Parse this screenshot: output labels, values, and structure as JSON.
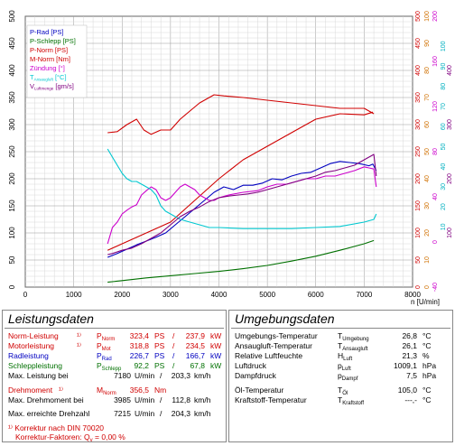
{
  "chart_data": {
    "type": "line",
    "xlabel": "n [U/min]",
    "xlim": [
      0,
      8000
    ],
    "xticks": [
      0,
      1000,
      2000,
      3000,
      4000,
      5000,
      6000,
      7000,
      8000
    ],
    "axes": {
      "left_black": {
        "range": [
          0,
          500
        ],
        "ticks": [
          0,
          50,
          100,
          150,
          200,
          250,
          300,
          350,
          400,
          450,
          500
        ],
        "color": "#000000"
      },
      "right_red": {
        "range": [
          0,
          500
        ],
        "ticks": [
          0,
          50,
          100,
          150,
          200,
          250,
          300,
          350,
          400,
          450,
          500
        ],
        "color": "#d00000"
      },
      "right_orange": {
        "range": [
          0,
          100
        ],
        "ticks": [
          0,
          10,
          20,
          30,
          40,
          50,
          60,
          70,
          80,
          90,
          100
        ],
        "color": "#d07000"
      },
      "right_magenta": {
        "range": [
          -40,
          200
        ],
        "ticks": [
          -40,
          0,
          40,
          80,
          120,
          160,
          200
        ],
        "color": "#cc00cc"
      },
      "right_cyan": {
        "ticks": [
          10,
          20,
          30,
          40,
          50,
          60,
          70,
          80,
          90,
          100
        ],
        "color": "#00b0c0"
      },
      "right_purple": {
        "ticks": [
          100,
          200,
          300,
          400
        ],
        "color": "#800080"
      }
    },
    "legend": {
      "placement": "top-left",
      "entries": [
        {
          "main": "P-Rad [PS]",
          "sub": "",
          "rest": "",
          "color": "#0000c0"
        },
        {
          "main": "P-Schlepp [PS]",
          "sub": "",
          "rest": "",
          "color": "#007000"
        },
        {
          "main": "P-Norm [PS]",
          "sub": "",
          "rest": "",
          "color": "#d00000"
        },
        {
          "main": "M-Norm [Nm]",
          "sub": "",
          "rest": "",
          "color": "#d00000"
        },
        {
          "main": "Zündung [°]",
          "sub": "",
          "rest": "",
          "color": "#cc00cc"
        },
        {
          "main": "T",
          "sub": "Ansaugluft",
          "rest": " [°C]",
          "color": "#00c8d0"
        },
        {
          "main": "V",
          "sub": "Luftmenge",
          "rest": " [gm/s]",
          "color": "#800080"
        }
      ]
    },
    "series": [
      {
        "color": "#0000c0",
        "axis": "left_black",
        "x": [
          1700,
          1900,
          2100,
          2300,
          2500,
          2700,
          2900,
          3100,
          3300,
          3500,
          3700,
          3900,
          4100,
          4300,
          4500,
          4700,
          4900,
          5100,
          5300,
          5500,
          5700,
          5900,
          6100,
          6300,
          6500,
          6700,
          6900,
          7100,
          7180,
          7250
        ],
        "y": [
          55,
          62,
          70,
          78,
          85,
          92,
          100,
          115,
          130,
          145,
          160,
          175,
          185,
          180,
          188,
          188,
          192,
          200,
          198,
          205,
          210,
          212,
          220,
          228,
          232,
          230,
          228,
          224,
          227,
          215
        ]
      },
      {
        "color": "#007000",
        "axis": "left_black",
        "x": [
          1700,
          2000,
          2500,
          3000,
          3500,
          4000,
          4500,
          5000,
          5500,
          6000,
          6500,
          7000,
          7200
        ],
        "y": [
          9,
          12,
          17,
          21,
          25,
          29,
          34,
          40,
          48,
          57,
          68,
          80,
          86
        ]
      },
      {
        "color": "#d00000",
        "axis": "left_black",
        "x": [
          1700,
          2000,
          2500,
          3000,
          3500,
          4000,
          4500,
          5000,
          5500,
          6000,
          6500,
          7000,
          7180
        ],
        "y": [
          68,
          80,
          100,
          120,
          160,
          200,
          235,
          260,
          285,
          310,
          320,
          318,
          323
        ]
      },
      {
        "color": "#d00000",
        "axis": "left_black",
        "x": [
          1700,
          1900,
          2100,
          2300,
          2450,
          2600,
          2800,
          3000,
          3200,
          3400,
          3600,
          3800,
          3900,
          4100,
          4500,
          5000,
          5500,
          6000,
          6500,
          7000,
          7200
        ],
        "y": [
          285,
          287,
          300,
          310,
          290,
          282,
          290,
          290,
          310,
          325,
          340,
          350,
          355,
          353,
          350,
          345,
          340,
          335,
          330,
          330,
          320
        ]
      },
      {
        "color": "#cc00cc",
        "axis": "left_black",
        "x": [
          1700,
          1800,
          1900,
          2000,
          2100,
          2200,
          2300,
          2400,
          2500,
          2600,
          2700,
          2800,
          2900,
          3000,
          3100,
          3200,
          3300,
          3400,
          3500,
          3600,
          3700,
          3800,
          3900,
          4000,
          4200,
          4500,
          4800,
          5000,
          5200,
          5400,
          5600,
          5800,
          6000,
          6200,
          6400,
          6600,
          6800,
          7000,
          7100,
          7200,
          7250
        ],
        "y": [
          80,
          110,
          120,
          135,
          142,
          148,
          152,
          170,
          178,
          185,
          180,
          165,
          160,
          165,
          175,
          185,
          190,
          185,
          180,
          170,
          165,
          160,
          160,
          165,
          170,
          175,
          178,
          185,
          190,
          190,
          195,
          200,
          200,
          205,
          205,
          210,
          215,
          222,
          220,
          218,
          185
        ]
      },
      {
        "color": "#00c8d0",
        "axis": "left_black",
        "x": [
          1700,
          1800,
          1900,
          2000,
          2100,
          2200,
          2300,
          2400,
          2500,
          2600,
          2700,
          2800,
          2900,
          3000,
          3200,
          3400,
          3600,
          3800,
          4000,
          4500,
          5000,
          5500,
          6000,
          6500,
          7000,
          7200,
          7250
        ],
        "y": [
          255,
          240,
          225,
          210,
          200,
          195,
          195,
          190,
          185,
          180,
          170,
          150,
          140,
          135,
          125,
          120,
          115,
          110,
          110,
          108,
          108,
          108,
          110,
          112,
          120,
          125,
          135
        ]
      },
      {
        "color": "#800080",
        "axis": "left_black",
        "x": [
          1700,
          1800,
          2000,
          2200,
          2400,
          2600,
          2800,
          3000,
          3200,
          3400,
          3600,
          3800,
          4000,
          4200,
          4400,
          4600,
          4800,
          5000,
          5200,
          5400,
          5600,
          5800,
          6000,
          6200,
          6400,
          6600,
          6800,
          7000,
          7200,
          7250
        ],
        "y": [
          60,
          62,
          68,
          72,
          80,
          90,
          100,
          115,
          130,
          140,
          148,
          158,
          165,
          168,
          170,
          172,
          175,
          180,
          185,
          190,
          195,
          200,
          205,
          212,
          215,
          220,
          225,
          235,
          245,
          205
        ]
      }
    ]
  },
  "leistung": {
    "title": "Leistungsdaten",
    "norm_label": "Norm-Leistung",
    "norm_mark": "¹⁾",
    "norm_sym": "P",
    "norm_sub": "Norm",
    "norm_ps": "323,4",
    "norm_ps_unit": "PS",
    "norm_kw": "237,9",
    "norm_kw_unit": "kW",
    "motor_label": "Motorleistung",
    "motor_mark": "¹⁾",
    "motor_sym": "P",
    "motor_sub": "Mot",
    "motor_ps": "318,8",
    "motor_ps_unit": "PS",
    "motor_kw": "234,5",
    "motor_kw_unit": "kW",
    "rad_label": "Radleistung",
    "rad_sym": "P",
    "rad_sub": "Rad",
    "rad_ps": "226,7",
    "rad_ps_unit": "PS",
    "rad_kw": "166,7",
    "rad_kw_unit": "kW",
    "schlepp_label": "Schleppleistung",
    "schlepp_sym": "P",
    "schlepp_sub": "Schlepp",
    "schlepp_ps": "92,2",
    "schlepp_ps_unit": "PS",
    "schlepp_kw": "67,8",
    "schlepp_kw_unit": "kW",
    "max_label": "Max. Leistung bei",
    "max_rpm": "7180",
    "max_rpm_unit": "U/min",
    "max_kmh": "203,3",
    "max_kmh_unit": "km/h",
    "dm_label": "Drehmoment",
    "dm_mark": "¹⁾",
    "dm_sym": "M",
    "dm_sub": "Norm",
    "dm_val": "356,5",
    "dm_unit": "Nm",
    "maxdm_label": "Max. Drehmoment bei",
    "maxdm_rpm": "3985",
    "maxdm_rpm_unit": "U/min",
    "maxdm_kmh": "112,8",
    "maxdm_kmh_unit": "km/h",
    "maxdz_label": "Max. erreichte Drehzahl",
    "maxdz_rpm": "7215",
    "maxdz_rpm_unit": "U/min",
    "maxdz_kmh": "204,3",
    "maxdz_kmh_unit": "km/h",
    "korr_line": "¹⁾ Korrektur nach DIN 70020",
    "korr_faktor": "Korrektur-Faktoren: Q",
    "korr_sub": "v",
    "korr_val": " =  0,00 %",
    "slash": "/"
  },
  "umgebung": {
    "title": "Umgebungsdaten",
    "rows": [
      {
        "label": "Umgebungs-Temperatur",
        "sym": "T",
        "sub": "Umgebung",
        "value": "26,8",
        "unit": "°C"
      },
      {
        "label": "Ansaugluft-Temperatur",
        "sym": "T",
        "sub": "Ansaugluft",
        "value": "26,1",
        "unit": "°C"
      },
      {
        "label": "Relative Luftfeuchte",
        "sym": "H",
        "sub": "Luft",
        "value": "21,3",
        "unit": "%"
      },
      {
        "label": "Luftdruck",
        "sym": "p",
        "sub": "Luft",
        "value": "1009,1",
        "unit": "hPa"
      },
      {
        "label": "Dampfdruck",
        "sym": "p",
        "sub": "Dampf",
        "value": "7,5",
        "unit": "hPa"
      },
      {
        "label": "Öl-Temperatur",
        "sym": "T",
        "sub": "Öl",
        "value": "105,0",
        "unit": "°C"
      },
      {
        "label": "Kraftstoff-Temperatur",
        "sym": "T",
        "sub": "Kraftstoff",
        "value": "---,-",
        "unit": "°C"
      }
    ]
  }
}
